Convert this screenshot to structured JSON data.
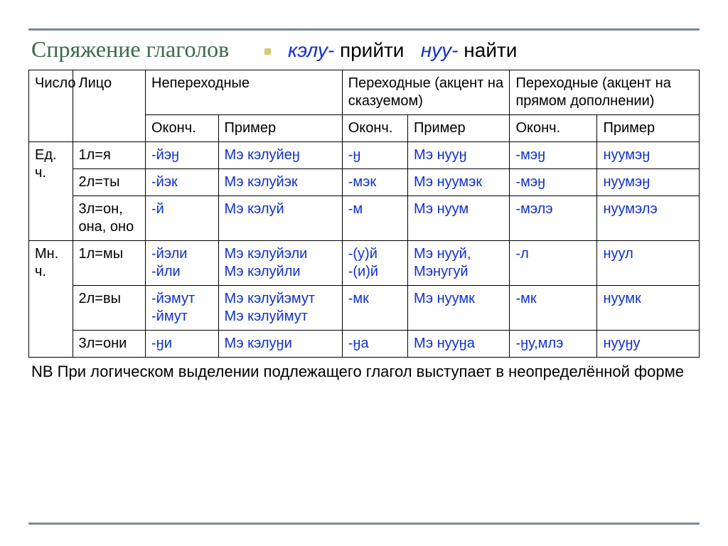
{
  "title": "Спряжение глаголов",
  "verbdefs": {
    "stem1": "кэлу-",
    "mean1": "прийти",
    "stem2": "нуу-",
    "mean2": "найти"
  },
  "headers": {
    "number": "Число",
    "person": "Лицо",
    "intrans": "Непереходные",
    "trans_pred": "Переходные (акцент на сказуемом)",
    "trans_obj": "Переходные (акцент на прямом дополнении)",
    "ending": "Оконч.",
    "example": "Пример"
  },
  "numbers": {
    "sg": "Ед. ч.",
    "pl": "Мн. ч."
  },
  "rows": [
    {
      "num": "sg",
      "person": "1л=я",
      "e1": "-йэӈ",
      "p1": "Мэ кэлуйеӈ",
      "e2": "-ӈ",
      "p2": "Мэ нууӈ",
      "e3": "-мэӈ",
      "p3": "нуумэӈ"
    },
    {
      "num": "sg",
      "person": "2л=ты",
      "e1": "-йэк",
      "p1": "Мэ кэлуйэк",
      "e2": "-мэк",
      "p2": "Мэ нуумэк",
      "e3": "-мэӈ",
      "p3": "нуумэӈ"
    },
    {
      "num": "sg",
      "person": "3л=он, она, оно",
      "e1": "-й",
      "p1": "Мэ кэлуй",
      "e2": "-м",
      "p2": "Мэ нуум",
      "e3": "-мэлэ",
      "p3": "нуумэлэ"
    },
    {
      "num": "pl",
      "person": "1л=мы",
      "e1": "-йэли\n-йли",
      "p1": "Мэ кэлуйэли\nМэ кэлуйли",
      "e2": "-(у)й\n-(и)й",
      "p2": "Мэ нууй,\nМэнугуй",
      "e3": "-л",
      "p3": "нуул"
    },
    {
      "num": "pl",
      "person": "2л=вы",
      "e1": "-йэмут\n-ймут",
      "p1": "Мэ кэлуйэмут\nМэ кэлуймут",
      "e2": "-мк",
      "p2": "Мэ нуумк",
      "e3": "-мк",
      "p3": "нуумк"
    },
    {
      "num": "pl",
      "person": "3л=они",
      "e1": "-ӈи",
      "p1": "Мэ кэлуӈи",
      "e2": "-ӈа",
      "p2": "Мэ нууӈа",
      "e3": "-ӈу,млэ",
      "p3": "нууӈу"
    }
  ],
  "note": "NB При логическом выделении подлежащего глагол выступает в неопределённой форме",
  "colors": {
    "title": "#3a6a4a",
    "blue": "#1030cc",
    "rule": "#7a8a99",
    "bullet": "#d9c97a",
    "text": "#000000",
    "border": "#000000",
    "background": "#ffffff"
  },
  "fonts": {
    "title_size_pt": 24,
    "table_size_pt": 15,
    "note_size_pt": 16
  }
}
